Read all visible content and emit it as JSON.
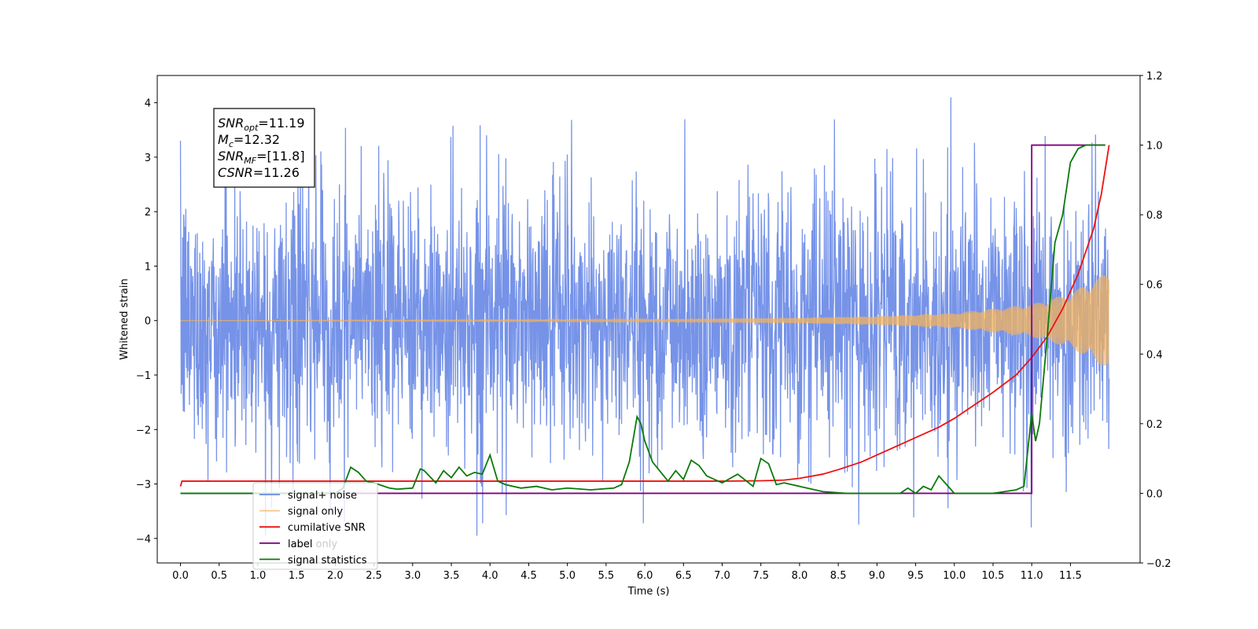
{
  "chart_data": {
    "type": "line",
    "xlabel": "Time (s)",
    "ylabel": "Whitened strain",
    "xlim": [
      -0.3,
      12.4
    ],
    "ylim": [
      -4.45,
      4.5
    ],
    "y2lim": [
      -0.2,
      1.2
    ],
    "x_ticks": [
      0.0,
      0.5,
      1.0,
      1.5,
      2.0,
      2.5,
      3.0,
      3.5,
      4.0,
      4.5,
      5.0,
      5.5,
      6.0,
      6.5,
      7.0,
      7.5,
      8.0,
      8.5,
      9.0,
      9.5,
      10.0,
      10.5,
      11.0,
      11.5
    ],
    "x_tick_labels": [
      "0.0",
      "0.5",
      "1.0",
      "1.5",
      "2.0",
      "2.5",
      "3.0",
      "3.5",
      "4.0",
      "4.5",
      "5.0",
      "5.5",
      "6.0",
      "6.5",
      "7.0",
      "7.5",
      "8.0",
      "8.5",
      "9.0",
      "9.5",
      "10.0",
      "10.5",
      "11.0",
      "11.5"
    ],
    "y_ticks": [
      -4,
      -3,
      -2,
      -1,
      0,
      1,
      2,
      3,
      4
    ],
    "y_tick_labels": [
      "−4",
      "−3",
      "−2",
      "−1",
      "0",
      "1",
      "2",
      "3",
      "4"
    ],
    "y2_ticks": [
      -0.2,
      0.0,
      0.2,
      0.4,
      0.6,
      0.8,
      1.0,
      1.2
    ],
    "y2_tick_labels": [
      "−0.2",
      "0.0",
      "0.2",
      "0.4",
      "0.6",
      "0.8",
      "1.0",
      "1.2"
    ],
    "legend_position": "bottom-left",
    "series": [
      {
        "name": "signal+ noise",
        "axis": "left",
        "color": "#6a8ae6",
        "description_values": {
          "x_start": 0.0,
          "x_end": 12.0,
          "typical_amplitude": 1.4,
          "max": 4.1,
          "min": -3.95
        }
      },
      {
        "name": "signal only",
        "axis": "left",
        "color": "#f4b35c",
        "description_values": {
          "x_start": 0.0,
          "x_end": 12.0,
          "envelope": [
            [
              0.0,
              0.0
            ],
            [
              6.0,
              0.02
            ],
            [
              8.0,
              0.05
            ],
            [
              9.0,
              0.08
            ],
            [
              10.0,
              0.14
            ],
            [
              11.0,
              0.3
            ],
            [
              11.5,
              0.5
            ],
            [
              12.0,
              0.9
            ]
          ]
        }
      },
      {
        "name": "cumilative SNR",
        "axis": "right",
        "color": "#ee1111",
        "x": [
          0.0,
          0.02,
          1.0,
          2.0,
          3.0,
          4.0,
          5.0,
          6.0,
          7.0,
          7.5,
          7.8,
          8.0,
          8.3,
          8.5,
          8.8,
          9.0,
          9.3,
          9.5,
          9.8,
          10.0,
          10.3,
          10.5,
          10.8,
          11.0,
          11.2,
          11.4,
          11.6,
          11.8,
          11.9,
          12.0
        ],
        "values": [
          0.02,
          0.035,
          0.035,
          0.035,
          0.035,
          0.035,
          0.035,
          0.035,
          0.035,
          0.036,
          0.038,
          0.043,
          0.055,
          0.068,
          0.09,
          0.11,
          0.14,
          0.16,
          0.19,
          0.215,
          0.26,
          0.29,
          0.34,
          0.39,
          0.45,
          0.53,
          0.63,
          0.76,
          0.86,
          1.0
        ]
      },
      {
        "name": "label",
        "axis": "right",
        "color": "#800080",
        "x": [
          0.0,
          10.92,
          10.92,
          11.0,
          11.0,
          11.95
        ],
        "values": [
          0.0,
          0.0,
          0.0,
          0.0,
          1.0,
          1.0
        ]
      },
      {
        "name": "signal statistics",
        "axis": "right",
        "color": "#0a7a0a",
        "x": [
          0.0,
          0.5,
          1.0,
          1.5,
          2.0,
          2.1,
          2.2,
          2.3,
          2.4,
          2.5,
          2.7,
          2.8,
          3.0,
          3.1,
          3.15,
          3.3,
          3.4,
          3.5,
          3.6,
          3.7,
          3.8,
          3.9,
          4.0,
          4.1,
          4.2,
          4.4,
          4.6,
          4.8,
          5.0,
          5.3,
          5.6,
          5.7,
          5.8,
          5.9,
          5.95,
          6.0,
          6.1,
          6.3,
          6.4,
          6.5,
          6.6,
          6.7,
          6.8,
          7.0,
          7.2,
          7.4,
          7.5,
          7.6,
          7.7,
          7.8,
          8.0,
          8.3,
          8.6,
          9.0,
          9.3,
          9.4,
          9.5,
          9.6,
          9.7,
          9.8,
          9.9,
          10.0,
          10.1,
          10.2,
          10.5,
          10.8,
          10.9,
          11.0,
          11.05,
          11.1,
          11.2,
          11.3,
          11.4,
          11.5,
          11.6,
          11.7,
          11.8,
          11.95
        ],
        "values": [
          0.0,
          0.0,
          0.0,
          0.0,
          0.0,
          0.015,
          0.075,
          0.06,
          0.035,
          0.03,
          0.015,
          0.012,
          0.015,
          0.07,
          0.065,
          0.03,
          0.065,
          0.045,
          0.075,
          0.05,
          0.06,
          0.055,
          0.11,
          0.035,
          0.025,
          0.015,
          0.02,
          0.01,
          0.015,
          0.01,
          0.015,
          0.025,
          0.09,
          0.22,
          0.2,
          0.15,
          0.09,
          0.035,
          0.065,
          0.04,
          0.095,
          0.08,
          0.05,
          0.03,
          0.055,
          0.02,
          0.1,
          0.085,
          0.025,
          0.03,
          0.02,
          0.005,
          0.0,
          0.0,
          0.0,
          0.015,
          0.0,
          0.02,
          0.01,
          0.05,
          0.025,
          0.0,
          0.0,
          0.0,
          0.0,
          0.01,
          0.02,
          0.23,
          0.15,
          0.2,
          0.45,
          0.72,
          0.8,
          0.95,
          0.99,
          1.0,
          1.0,
          1.0
        ]
      }
    ],
    "annotation_lines": [
      {
        "base": "SNR",
        "sub": "opt",
        "value": "=11.19"
      },
      {
        "base": "M",
        "sub": "c",
        "value": "=12.32"
      },
      {
        "base": "SNR",
        "sub": "MF",
        "value": "=[11.8]"
      },
      {
        "base": "CSNR",
        "sub": "",
        "value": "=11.26"
      }
    ],
    "legend_ghost_entries": [
      "label only",
      "signal statistics"
    ]
  }
}
